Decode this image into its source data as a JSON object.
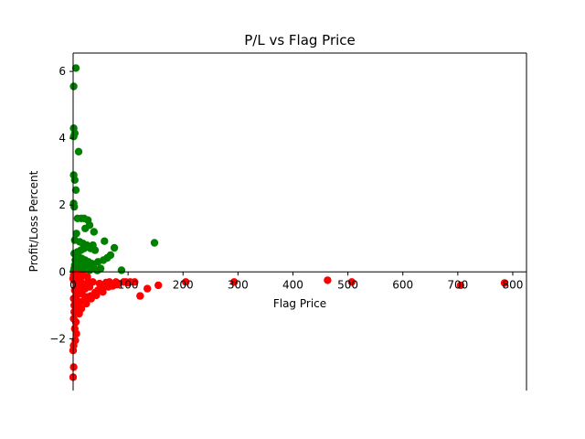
{
  "chart_data": {
    "type": "scatter",
    "title": "P/L vs Flag Price",
    "xlabel": "Flag Price",
    "ylabel": "Profit/Loss Percent",
    "xlim": [
      0,
      825
    ],
    "ylim": [
      -3.55,
      6.55
    ],
    "x_ticks": [
      0,
      100,
      200,
      300,
      400,
      500,
      600,
      700,
      800
    ],
    "y_ticks": [
      -2,
      0,
      2,
      4,
      6
    ],
    "x_tick_labels": [
      "0",
      "100",
      "200",
      "300",
      "400",
      "500",
      "600",
      "700",
      "800"
    ],
    "y_tick_labels": [
      "−2",
      "0",
      "2",
      "4",
      "6"
    ],
    "spines": "left and bottom axes drawn through the origin",
    "grid": false,
    "legend": "none",
    "colors": {
      "profit": "#008000",
      "loss": "#ff0000"
    },
    "series": [
      {
        "color": "#008000",
        "points": [
          [
            5,
            6.1
          ],
          [
            1,
            5.55
          ],
          [
            1,
            4.3
          ],
          [
            3,
            4.15
          ],
          [
            1,
            4.05
          ],
          [
            10,
            3.6
          ],
          [
            1,
            2.9
          ],
          [
            3,
            2.75
          ],
          [
            5,
            2.45
          ],
          [
            1,
            2.05
          ],
          [
            2,
            1.95
          ],
          [
            8,
            1.6
          ],
          [
            15,
            1.6
          ],
          [
            20,
            1.6
          ],
          [
            27,
            1.55
          ],
          [
            30,
            1.4
          ],
          [
            22,
            1.3
          ],
          [
            38,
            1.2
          ],
          [
            6,
            1.15
          ],
          [
            57,
            0.92
          ],
          [
            148,
            0.87
          ],
          [
            3,
            0.95
          ],
          [
            12,
            0.9
          ],
          [
            18,
            0.85
          ],
          [
            25,
            0.8
          ],
          [
            36,
            0.8
          ],
          [
            75,
            0.72
          ],
          [
            40,
            0.65
          ],
          [
            32,
            0.7
          ],
          [
            20,
            0.7
          ],
          [
            14,
            0.65
          ],
          [
            8,
            0.6
          ],
          [
            68,
            0.5
          ],
          [
            62,
            0.42
          ],
          [
            55,
            0.35
          ],
          [
            45,
            0.3
          ],
          [
            2,
            0.55
          ],
          [
            5,
            0.5
          ],
          [
            10,
            0.45
          ],
          [
            16,
            0.4
          ],
          [
            22,
            0.35
          ],
          [
            28,
            0.3
          ],
          [
            34,
            0.25
          ],
          [
            4,
            0.35
          ],
          [
            9,
            0.3
          ],
          [
            14,
            0.25
          ],
          [
            19,
            0.2
          ],
          [
            26,
            0.18
          ],
          [
            3,
            0.2
          ],
          [
            7,
            0.15
          ],
          [
            12,
            0.12
          ],
          [
            38,
            0.12
          ],
          [
            50,
            0.1
          ],
          [
            88,
            0.05
          ],
          [
            2,
            0.1
          ],
          [
            6,
            0.08
          ],
          [
            18,
            0.06
          ],
          [
            30,
            0.05
          ],
          [
            44,
            0.04
          ],
          [
            1,
            0.03
          ]
        ]
      },
      {
        "color": "#ff0000",
        "points": [
          [
            463,
            -0.25
          ],
          [
            507,
            -0.3
          ],
          [
            705,
            -0.4
          ],
          [
            785,
            -0.33
          ],
          [
            205,
            -0.3
          ],
          [
            293,
            -0.3
          ],
          [
            155,
            -0.4
          ],
          [
            135,
            -0.5
          ],
          [
            122,
            -0.72
          ],
          [
            112,
            -0.3
          ],
          [
            104,
            -0.3
          ],
          [
            92,
            -0.3
          ],
          [
            82,
            -0.35
          ],
          [
            78,
            -0.3
          ],
          [
            72,
            -0.42
          ],
          [
            66,
            -0.3
          ],
          [
            60,
            -0.32
          ],
          [
            54,
            -0.6
          ],
          [
            48,
            -0.35
          ],
          [
            45,
            -0.55
          ],
          [
            40,
            -0.62
          ],
          [
            36,
            -0.3
          ],
          [
            32,
            -0.72
          ],
          [
            30,
            -0.45
          ],
          [
            28,
            -0.3
          ],
          [
            25,
            -0.75
          ],
          [
            22,
            -0.5
          ],
          [
            20,
            -0.85
          ],
          [
            18,
            -0.35
          ],
          [
            16,
            -0.65
          ],
          [
            14,
            -0.45
          ],
          [
            12,
            -0.9
          ],
          [
            10,
            -0.6
          ],
          [
            9,
            -0.3
          ],
          [
            8,
            -1.05
          ],
          [
            7,
            -0.7
          ],
          [
            6,
            -0.4
          ],
          [
            5,
            -1.5
          ],
          [
            4,
            -0.95
          ],
          [
            3,
            -0.55
          ],
          [
            2,
            -1.2
          ],
          [
            2,
            -0.25
          ],
          [
            1,
            -0.8
          ],
          [
            1,
            -1.4
          ],
          [
            0,
            -0.2
          ],
          [
            3,
            -1.7
          ],
          [
            6,
            -1.85
          ],
          [
            4,
            -2.05
          ],
          [
            1,
            -2.2
          ],
          [
            0,
            -2.35
          ],
          [
            1,
            -2.85
          ],
          [
            0,
            -3.15
          ],
          [
            2,
            -1.0
          ],
          [
            11,
            -1.25
          ],
          [
            15,
            -1.1
          ],
          [
            24,
            -0.95
          ],
          [
            33,
            -0.8
          ],
          [
            42,
            -0.7
          ],
          [
            52,
            -0.5
          ],
          [
            64,
            -0.45
          ],
          [
            80,
            -0.38
          ],
          [
            96,
            -0.3
          ],
          [
            7,
            -0.15
          ],
          [
            13,
            -0.2
          ],
          [
            19,
            -0.1
          ],
          [
            26,
            -0.15
          ],
          [
            1,
            -0.1
          ],
          [
            4,
            -0.05
          ],
          [
            9,
            -0.08
          ],
          [
            100,
            -0.32
          ]
        ]
      }
    ]
  }
}
